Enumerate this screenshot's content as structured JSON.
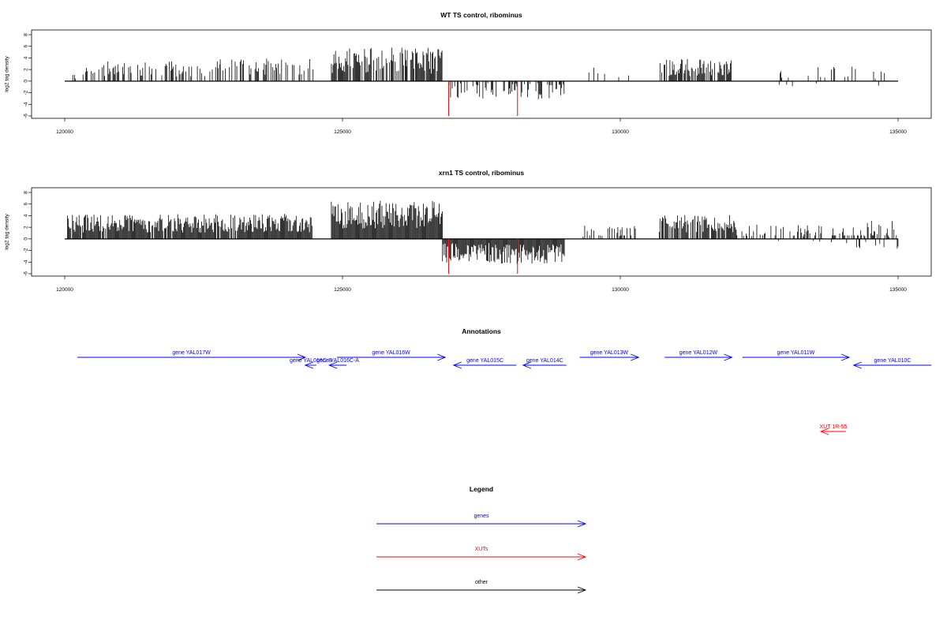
{
  "chart_data": [
    {
      "type": "bar",
      "title": "WT TS control, ribominus",
      "xlabel": "",
      "ylabel": "log2 tag density",
      "xlim": [
        120000,
        135000
      ],
      "ylim": [
        -6,
        8
      ],
      "xticks": [
        120000,
        125000,
        130000,
        135000
      ],
      "xtick_labels": [
        "120000",
        "125000",
        "130000",
        "135000"
      ],
      "yticks": [
        -6,
        -4,
        -2,
        0,
        2,
        4,
        6,
        8
      ],
      "ytick_labels": [
        "-6",
        "-4",
        "-2",
        "0",
        "2",
        "4",
        "6",
        "8"
      ],
      "baseline_x_range": [
        120000,
        135000
      ],
      "profile": [
        {
          "from": 120100,
          "to": 120300,
          "mean": 0.8,
          "spread": 0.6,
          "density": 0.2
        },
        {
          "from": 120300,
          "to": 122800,
          "mean": 2.1,
          "spread": 1.3,
          "density": 0.4
        },
        {
          "from": 122800,
          "to": 124500,
          "mean": 2.5,
          "spread": 1.4,
          "density": 0.45
        },
        {
          "from": 124800,
          "to": 126150,
          "mean": 3.6,
          "spread": 2.2,
          "density": 0.8
        },
        {
          "from": 126150,
          "to": 126800,
          "mean": 3.5,
          "spread": 2.3,
          "density": 0.85
        },
        {
          "from": 126900,
          "to": 129000,
          "mean": -1.6,
          "spread": 1.5,
          "density": 0.45
        },
        {
          "from": 129300,
          "to": 130400,
          "mean": 1.5,
          "spread": 0.9,
          "density": 0.08
        },
        {
          "from": 130700,
          "to": 132000,
          "mean": 2.3,
          "spread": 1.5,
          "density": 0.7
        },
        {
          "from": 132800,
          "to": 134800,
          "mean": 0.8,
          "spread": 1.7,
          "density": 0.15
        }
      ],
      "highlights": [
        {
          "x": 126910,
          "value": -6,
          "color": "#ff0000"
        },
        {
          "x": 128150,
          "value": -6,
          "color": "#ff0000"
        }
      ]
    },
    {
      "type": "bar",
      "title": "xrn1 TS control, ribominus",
      "xlabel": "",
      "ylabel": "log2 tag density",
      "xlim": [
        120000,
        135000
      ],
      "ylim": [
        -6,
        8
      ],
      "xticks": [
        120000,
        125000,
        130000,
        135000
      ],
      "xtick_labels": [
        "120000",
        "125000",
        "130000",
        "135000"
      ],
      "yticks": [
        -6,
        -4,
        -2,
        0,
        2,
        4,
        6,
        8
      ],
      "ytick_labels": [
        "-6",
        "-4",
        "-2",
        "0",
        "2",
        "4",
        "6",
        "8"
      ],
      "baseline_x_range": [
        120000,
        135000
      ],
      "profile": [
        {
          "from": 120050,
          "to": 124450,
          "mean": 2.7,
          "spread": 1.6,
          "density": 0.95
        },
        {
          "from": 124800,
          "to": 126800,
          "mean": 4.2,
          "spread": 2.4,
          "density": 1.0
        },
        {
          "from": 126800,
          "to": 129000,
          "mean": -2.5,
          "spread": 1.8,
          "density": 1.0
        },
        {
          "from": 129300,
          "to": 130300,
          "mean": 1.2,
          "spread": 1.1,
          "density": 0.35
        },
        {
          "from": 130700,
          "to": 132100,
          "mean": 2.6,
          "spread": 1.5,
          "density": 0.85
        },
        {
          "from": 132100,
          "to": 134000,
          "mean": 0.9,
          "spread": 1.6,
          "density": 0.35
        },
        {
          "from": 134000,
          "to": 135000,
          "mean": 0.5,
          "spread": 2.6,
          "density": 0.7
        }
      ],
      "highlights": [
        {
          "x": 126910,
          "value": -6,
          "color": "#ff0000"
        },
        {
          "x": 128150,
          "value": -6,
          "color": "#ff0000"
        }
      ]
    }
  ],
  "annotations": {
    "title": "Annotations",
    "xlim": [
      120000,
      135000
    ],
    "genes_color": "#0000ff",
    "xut_color": "#ff0000",
    "items": [
      {
        "label": "gene YAL017W",
        "start": 120230,
        "end": 124330,
        "strand": "+",
        "row": 0,
        "category": "gene"
      },
      {
        "label": "gene YAL016C-B",
        "start": 124330,
        "end": 124530,
        "strand": "-",
        "row": 1,
        "category": "gene"
      },
      {
        "label": "gene YAL016C-A",
        "start": 124760,
        "end": 125070,
        "strand": "-",
        "row": 1,
        "category": "gene"
      },
      {
        "label": "gene YAL016W",
        "start": 124900,
        "end": 126850,
        "strand": "+",
        "row": 0,
        "category": "gene"
      },
      {
        "label": "gene YAL015C",
        "start": 127000,
        "end": 128130,
        "strand": "-",
        "row": 1,
        "category": "gene"
      },
      {
        "label": "gene YAL014C",
        "start": 128250,
        "end": 129030,
        "strand": "-",
        "row": 1,
        "category": "gene"
      },
      {
        "label": "gene YAL013W",
        "start": 129270,
        "end": 130330,
        "strand": "+",
        "row": 0,
        "category": "gene"
      },
      {
        "label": "gene YAL012W",
        "start": 130800,
        "end": 132010,
        "strand": "+",
        "row": 0,
        "category": "gene"
      },
      {
        "label": "gene YAL011W",
        "start": 132200,
        "end": 134120,
        "strand": "+",
        "row": 0,
        "category": "gene"
      },
      {
        "label": "gene YAL010C",
        "start": 134200,
        "end": 135600,
        "strand": "-",
        "row": 1,
        "category": "gene"
      },
      {
        "label": "XUT 1R-55",
        "start": 133610,
        "end": 134060,
        "strand": "-",
        "row": 2,
        "category": "xut"
      }
    ]
  },
  "legend": {
    "title": "Legend",
    "items": [
      {
        "label": "genes",
        "color": "#0000ff"
      },
      {
        "label": "XUTs",
        "color": "#ff0000"
      },
      {
        "label": "other",
        "color": "#000000"
      }
    ]
  }
}
